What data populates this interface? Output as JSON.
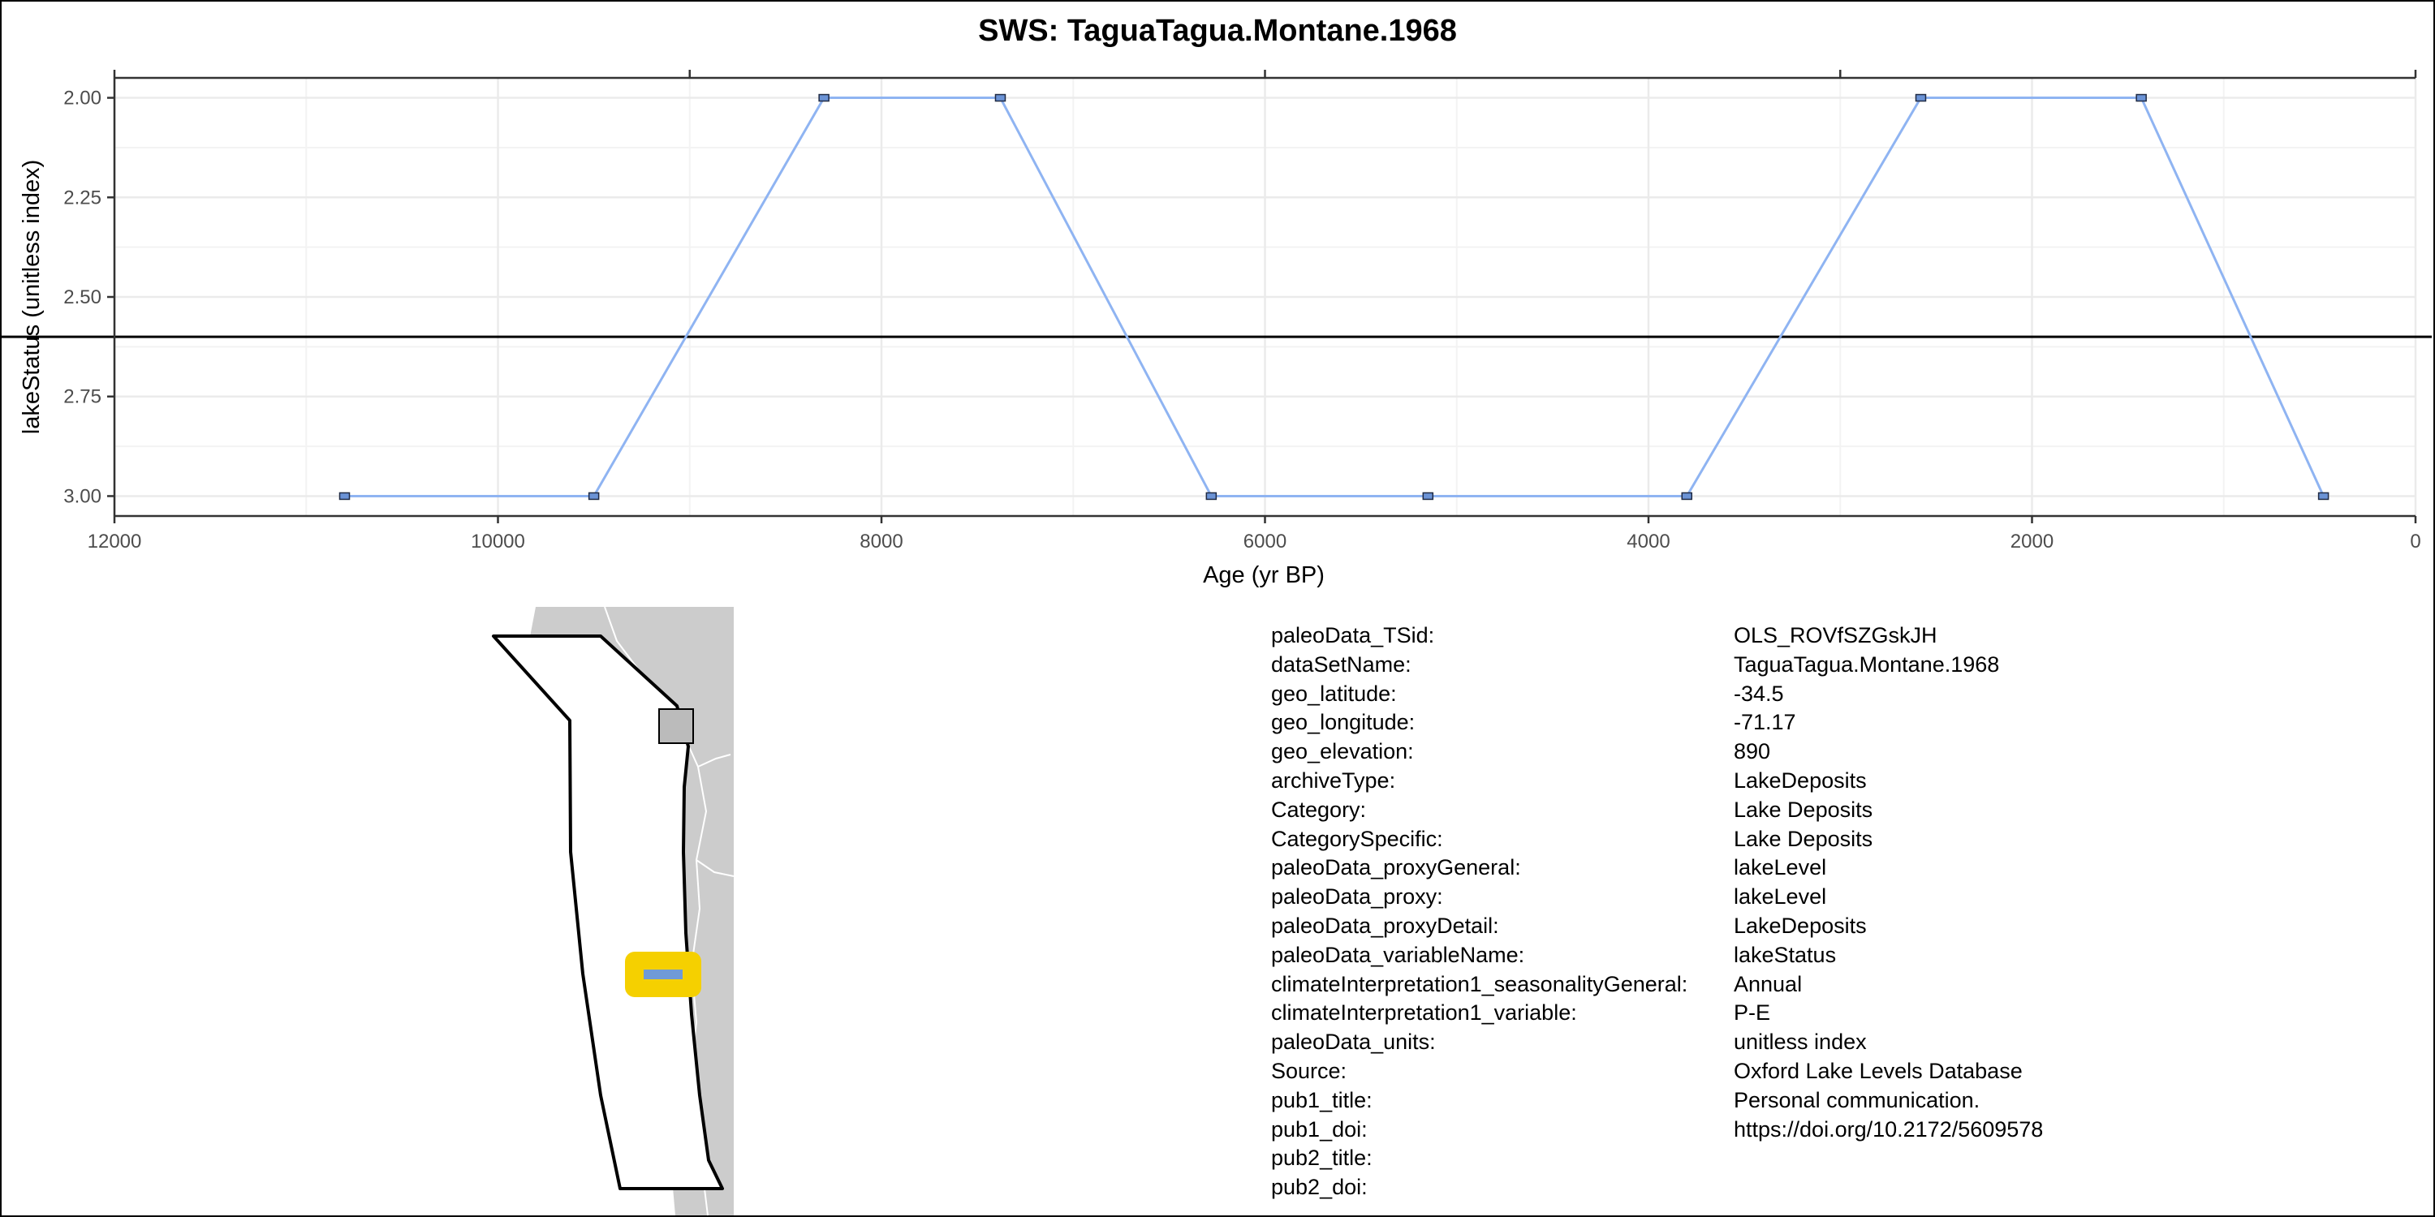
{
  "chart_data": {
    "type": "line",
    "title": "SWS: TaguaTagua.Montane.1968",
    "xlabel": "Age (yr BP)",
    "ylabel": "lakeStatus (unitless index)",
    "x_reversed": true,
    "y_reversed": true,
    "xlim": [
      12000,
      0
    ],
    "ylim": [
      1.95,
      3.05
    ],
    "x_ticks": [
      12000,
      10000,
      8000,
      6000,
      4000,
      2000,
      0
    ],
    "x_tick_labels": [
      "12000",
      "10000",
      "8000",
      "6000",
      "4000",
      "2000",
      "0"
    ],
    "y_ticks": [
      2.0,
      2.25,
      2.5,
      2.75,
      3.0
    ],
    "y_tick_labels": [
      "2.00",
      "2.25",
      "2.50",
      "2.75",
      "3.00"
    ],
    "x_minor_ticks": [
      11000,
      9000,
      7000,
      5000,
      3000,
      1000
    ],
    "top_axis_ticks": [
      9000,
      6000,
      3000
    ],
    "grid": true,
    "reference_line_y": 2.6,
    "series": [
      {
        "x": [
          10800,
          9500,
          8300,
          7380,
          6280,
          5150,
          3800,
          2580,
          1430,
          480
        ],
        "y": [
          3,
          3,
          2,
          2,
          3,
          3,
          3,
          2,
          2,
          3
        ]
      }
    ],
    "colors": {
      "line": "#8fb4f2",
      "marker_fill": "#6b93d6",
      "marker_stroke": "#1f2a44",
      "reference_line": "#000000",
      "grid": "#ebebeb"
    }
  },
  "map": {
    "site_marker_color": "#f5d000",
    "site_symbol_color": "#6f9ad8",
    "land_color": "#cccccc",
    "region_outline_color": "#000000"
  },
  "metadata": [
    {
      "key": "paleoData_TSid:",
      "value": "OLS_ROVfSZGskJH"
    },
    {
      "key": "dataSetName:",
      "value": "TaguaTagua.Montane.1968"
    },
    {
      "key": "geo_latitude:",
      "value": "-34.5"
    },
    {
      "key": "geo_longitude:",
      "value": "-71.17"
    },
    {
      "key": "geo_elevation:",
      "value": "890"
    },
    {
      "key": "archiveType:",
      "value": "LakeDeposits"
    },
    {
      "key": "Category:",
      "value": "Lake Deposits"
    },
    {
      "key": "CategorySpecific:",
      "value": "Lake Deposits"
    },
    {
      "key": "paleoData_proxyGeneral:",
      "value": "lakeLevel"
    },
    {
      "key": "paleoData_proxy:",
      "value": "lakeLevel"
    },
    {
      "key": "paleoData_proxyDetail:",
      "value": "LakeDeposits"
    },
    {
      "key": "paleoData_variableName:",
      "value": "lakeStatus"
    },
    {
      "key": "climateInterpretation1_seasonalityGeneral:",
      "value": "Annual"
    },
    {
      "key": "climateInterpretation1_variable:",
      "value": "P-E"
    },
    {
      "key": "paleoData_units:",
      "value": "unitless index"
    },
    {
      "key": "Source:",
      "value": "Oxford Lake Levels Database"
    },
    {
      "key": "pub1_title:",
      "value": "Personal communication."
    },
    {
      "key": "pub1_doi:",
      "value": "https://doi.org/10.2172/5609578"
    },
    {
      "key": "pub2_title:",
      "value": ""
    },
    {
      "key": "pub2_doi:",
      "value": ""
    }
  ]
}
